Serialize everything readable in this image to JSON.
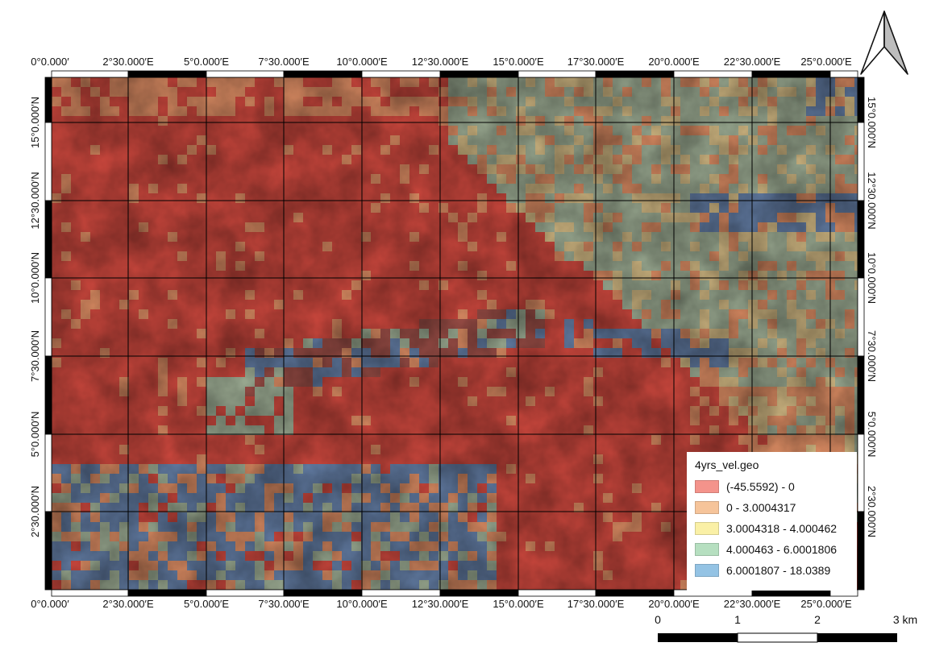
{
  "top_lon_labels": [
    "0°0.000′",
    "2°30.000′E",
    "5°0.000′E",
    "7°30.000′E",
    "10°0.000′E",
    "12°30.000′E",
    "15°0.000′E",
    "17°30.000′E",
    "20°0.000′E",
    "22°30.000′E",
    "25°0.000′E"
  ],
  "bottom_lon_labels": [
    "0°0.000′",
    "2°30.000′E",
    "5°0.000′E",
    "7°30.000′E",
    "10°0.000′E",
    "12°30.000′E",
    "15°0.000′E",
    "17°30.000′E",
    "20°0.000′E",
    "22°30.000′E",
    "25°0.000′E"
  ],
  "left_lat_labels": [
    "15°0.000′N",
    "12°30.000′N",
    "10°0.000′N",
    "7°30.000′N",
    "5°0.000′N",
    "2°30.000′N"
  ],
  "right_lat_labels": [
    "15°0.000′N",
    "12°30.000′N",
    "10°0.000′N",
    "7°30.000′N",
    "5°0.000′N",
    "2°30.000′N"
  ],
  "legend": {
    "title": "4yrs_vel.geo",
    "classes": [
      {
        "label": "(-45.5592) - 0",
        "color": "#f4938b"
      },
      {
        "label": "0 - 3.0004317",
        "color": "#f6c49a"
      },
      {
        "label": "3.0004318 - 4.000462",
        "color": "#faf0a6"
      },
      {
        "label": "4.000463 - 6.0001806",
        "color": "#b6dfc0"
      },
      {
        "label": "6.0001807 - 18.0389",
        "color": "#94c3e4"
      }
    ]
  },
  "scale_bar": {
    "labels": [
      "0",
      "1",
      "2",
      "3 km"
    ]
  },
  "north_arrow": {
    "icon": "north-arrow-icon"
  },
  "colors": {
    "class_neg": "#c8433a",
    "class_low": "#d58e63",
    "class_mid": "#c9bf86",
    "class_green": "#8fb49a",
    "class_blue": "#4f7fae",
    "channel": "#8f4a44"
  }
}
